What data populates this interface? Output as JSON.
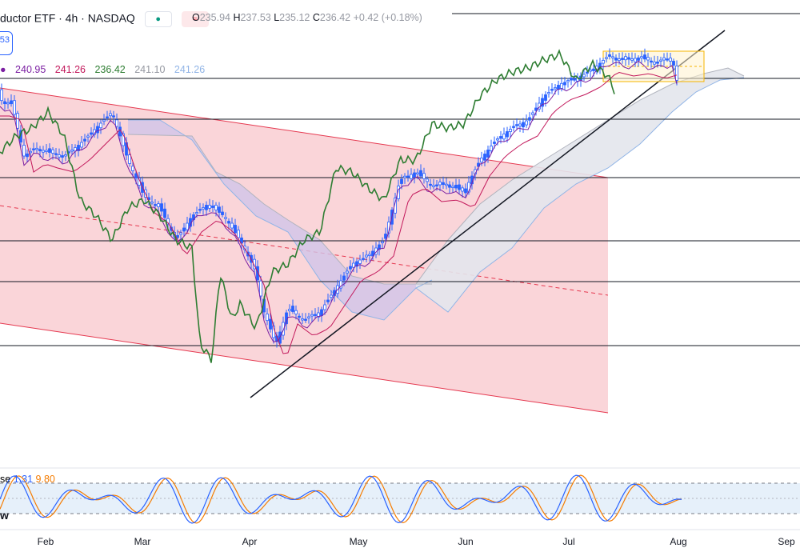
{
  "header": {
    "title": "ductor ETF · 4h · NASDAQ",
    "dot_color": "#089981",
    "badge_symbol": "≈"
  },
  "ohlc": {
    "o_label": "O",
    "o_value": "235.94",
    "h_label": "H",
    "h_value": "237.53",
    "l_label": "L",
    "l_value": "235.12",
    "c_label": "C",
    "c_value": "236.42",
    "change": "+0.42 (+0.18%)"
  },
  "chip_text": "53",
  "ichimoku_values": [
    {
      "text": "240.95",
      "color": "#7b1fa2"
    },
    {
      "text": "241.26",
      "color": "#c2185b"
    },
    {
      "text": "236.42",
      "color": "#2e7d32"
    },
    {
      "text": "241.10",
      "color": "#9598a1"
    },
    {
      "text": "241.26",
      "color": "#90b4e6"
    }
  ],
  "stoch": {
    "label": "se",
    "k": "1.31",
    "d": "9.80",
    "k_color": "#2962ff",
    "d_color": "#f57c00",
    "tag": "w"
  },
  "x_labels": [
    "Feb",
    "Mar",
    "Apr",
    "May",
    "Jun",
    "Jul",
    "Aug",
    "Sep"
  ],
  "chart_data": {
    "type": "line",
    "instrument": "Semiconductor ETF",
    "timeframe": "4h",
    "exchange": "NASDAQ",
    "x_months": [
      "Feb",
      "Mar",
      "Apr",
      "May",
      "Jun",
      "Jul",
      "Aug",
      "Sep"
    ],
    "horizontal_levels": [
      98,
      149,
      222,
      301,
      352,
      432
    ],
    "colors": {
      "up": "#2962ff",
      "down": "#2962ff",
      "lagging_span": "#2e7d32",
      "conversion": "#7b1fa2",
      "base": "#c2185b",
      "channel_fill": "#f8c7cc",
      "channel_line": "#e53950",
      "cloud_bear": "#d1c4e9",
      "cloud_bull": "#e3e6ec",
      "span_b": "#90b4e6",
      "stoch_band": "#dbe9f8"
    }
  }
}
